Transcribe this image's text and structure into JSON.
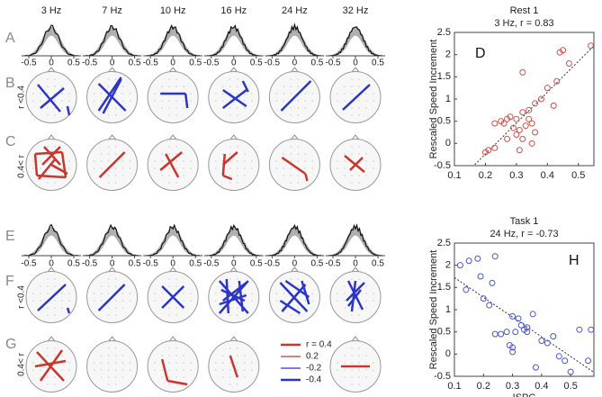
{
  "panel_letters": [
    "A",
    "B",
    "C",
    "E",
    "F",
    "G"
  ],
  "frequencies": [
    "3 Hz",
    "7 Hz",
    "10 Hz",
    "16 Hz",
    "24 Hz",
    "32 Hz"
  ],
  "row_labels": [
    "r <0.4",
    "0.4< r"
  ],
  "dist_xticks": [
    -0.5,
    0,
    0.5
  ],
  "legend": {
    "labels": [
      "r = 0.4",
      "0.2",
      "-0.2",
      "-0.4"
    ],
    "colors": [
      "#c8362e",
      "#c8362e",
      "#2b35c8",
      "#2b35c8"
    ]
  },
  "chart_data": [
    {
      "type": "scatter",
      "title": "Rest 1",
      "subtitle": "3 Hz, r = 0.83",
      "y_label": "Rescaled Speed Increment",
      "annotation": "D",
      "color": "#d0504a",
      "x": [
        0.2,
        0.21,
        0.23,
        0.23,
        0.25,
        0.26,
        0.27,
        0.27,
        0.28,
        0.29,
        0.3,
        0.3,
        0.31,
        0.31,
        0.32,
        0.32,
        0.32,
        0.33,
        0.34,
        0.34,
        0.35,
        0.35,
        0.36,
        0.38,
        0.4,
        0.42,
        0.43,
        0.44,
        0.45,
        0.47,
        0.54,
        0.36
      ],
      "y": [
        -0.2,
        -0.15,
        0.45,
        -0.1,
        0.5,
        0.45,
        0.55,
        0.1,
        0.6,
        0.35,
        0.55,
        0.2,
        -0.15,
        0.3,
        0.1,
        1.6,
        0.7,
        0.4,
        0.75,
        0.55,
        0.45,
        0.0,
        0.9,
        1.0,
        1.25,
        0.85,
        1.4,
        2.05,
        2.1,
        1.8,
        2.2,
        0.25
      ],
      "xlim": [
        0.1,
        0.55
      ],
      "xticks": [
        0.1,
        0.2,
        0.3,
        0.4,
        0.5
      ],
      "ylim": [
        -0.5,
        2.5
      ],
      "yticks": [
        -0.5,
        0,
        0.5,
        1,
        1.5,
        2,
        2.5
      ]
    },
    {
      "type": "scatter",
      "title": "Task 1",
      "subtitle": "24 Hz, r = -0.73",
      "y_label": "Rescaled Speed Increment",
      "x_label": "ISPC",
      "annotation": "H",
      "color": "#4a56c8",
      "x": [
        0.12,
        0.14,
        0.15,
        0.18,
        0.19,
        0.2,
        0.22,
        0.23,
        0.24,
        0.24,
        0.26,
        0.28,
        0.29,
        0.3,
        0.3,
        0.3,
        0.31,
        0.32,
        0.33,
        0.34,
        0.35,
        0.35,
        0.37,
        0.38,
        0.4,
        0.42,
        0.44,
        0.46,
        0.48,
        0.5,
        0.53,
        0.57,
        0.56
      ],
      "y": [
        2.0,
        1.45,
        2.1,
        2.15,
        1.75,
        1.25,
        1.1,
        1.6,
        2.2,
        0.45,
        0.45,
        0.5,
        0.2,
        0.05,
        0.15,
        0.85,
        0.5,
        0.8,
        0.65,
        0.55,
        0.6,
        0.5,
        0.9,
        -0.3,
        0.3,
        0.25,
        0.4,
        -0.05,
        -0.15,
        -0.4,
        0.55,
        0.55,
        -0.15
      ],
      "xlim": [
        0.1,
        0.58
      ],
      "xticks": [
        0.1,
        0.2,
        0.3,
        0.4,
        0.5
      ],
      "ylim": [
        -0.5,
        2.5
      ],
      "yticks": [
        -0.5,
        0,
        0.5,
        1,
        1.5,
        2,
        2.5
      ]
    }
  ]
}
